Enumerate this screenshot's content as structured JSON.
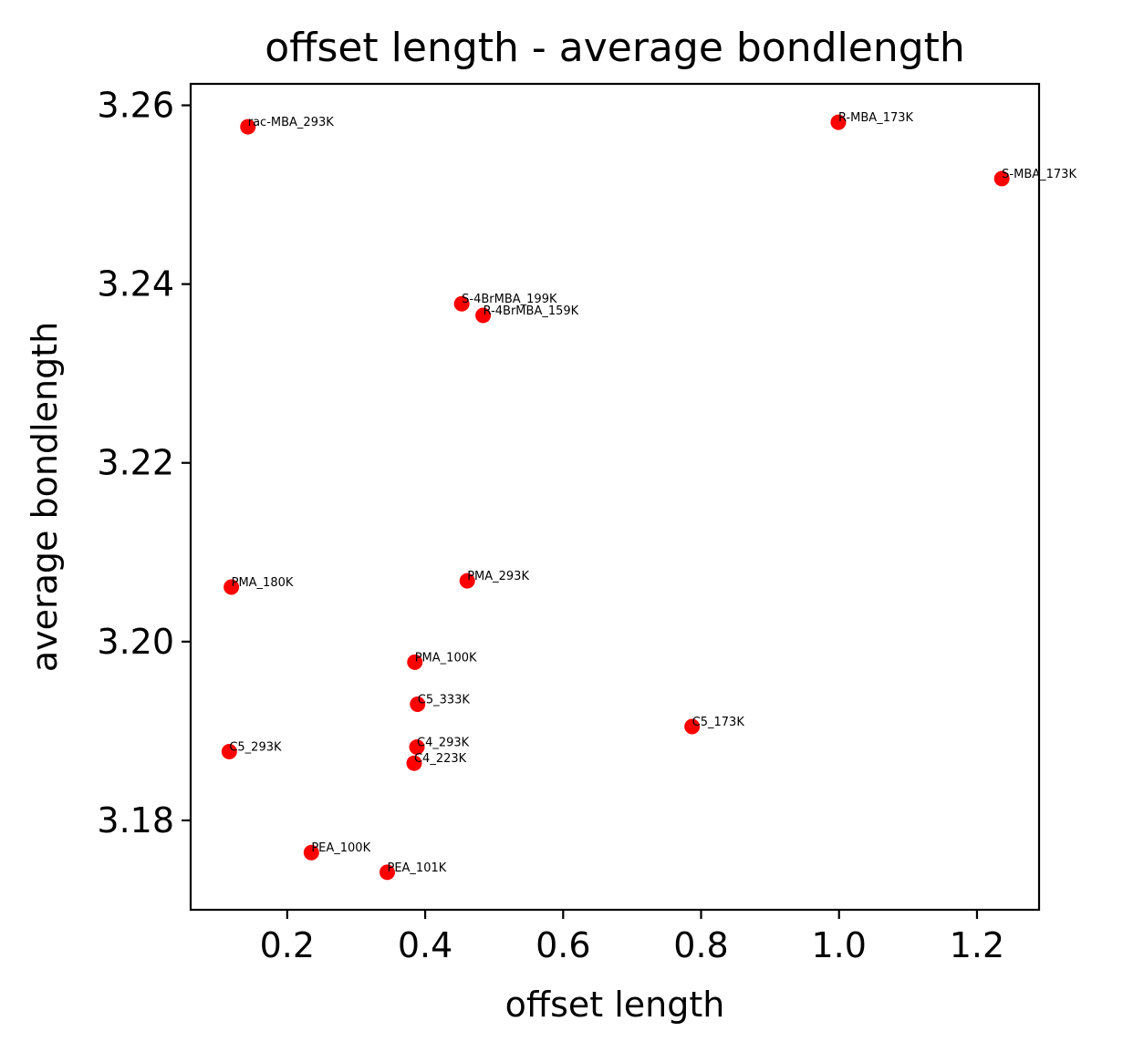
{
  "chart_data": {
    "type": "scatter",
    "title": "offset length - average bondlength",
    "xlabel": "offset length",
    "ylabel": "average bondlength",
    "xlim": [
      0.06,
      1.29
    ],
    "ylim": [
      3.17,
      3.2624
    ],
    "xticks": [
      0.2,
      0.4,
      0.6,
      0.8,
      1.0,
      1.2
    ],
    "xtick_labels": [
      "0.2",
      "0.4",
      "0.6",
      "0.8",
      "1.0",
      "1.2"
    ],
    "yticks": [
      3.18,
      3.2,
      3.22,
      3.24,
      3.26
    ],
    "ytick_labels": [
      "3.18",
      "3.20",
      "3.22",
      "3.24",
      "3.26"
    ],
    "grid": false,
    "marker_color": "#ff0000",
    "points": [
      {
        "label": "rac-MBA_293K",
        "x": 0.143,
        "y": 3.2576
      },
      {
        "label": "R-MBA_173K",
        "x": 0.999,
        "y": 3.2581
      },
      {
        "label": "S-MBA_173K",
        "x": 1.236,
        "y": 3.2518
      },
      {
        "label": "S-4BrMBA_199K",
        "x": 0.453,
        "y": 3.2378
      },
      {
        "label": "R-4BrMBA_159K",
        "x": 0.484,
        "y": 3.2365
      },
      {
        "label": "PMA_180K",
        "x": 0.119,
        "y": 3.2061
      },
      {
        "label": "PMA_293K",
        "x": 0.461,
        "y": 3.2068
      },
      {
        "label": "PMA_100K",
        "x": 0.385,
        "y": 3.1977
      },
      {
        "label": "C5_333K",
        "x": 0.389,
        "y": 3.193
      },
      {
        "label": "C5_173K",
        "x": 0.787,
        "y": 3.1905
      },
      {
        "label": "C5_293K",
        "x": 0.116,
        "y": 3.1877
      },
      {
        "label": "C4_293K",
        "x": 0.388,
        "y": 3.1882
      },
      {
        "label": "C4_223K",
        "x": 0.384,
        "y": 3.1864
      },
      {
        "label": "PEA_100K",
        "x": 0.235,
        "y": 3.1764
      },
      {
        "label": "PEA_101K",
        "x": 0.345,
        "y": 3.1742
      }
    ]
  }
}
